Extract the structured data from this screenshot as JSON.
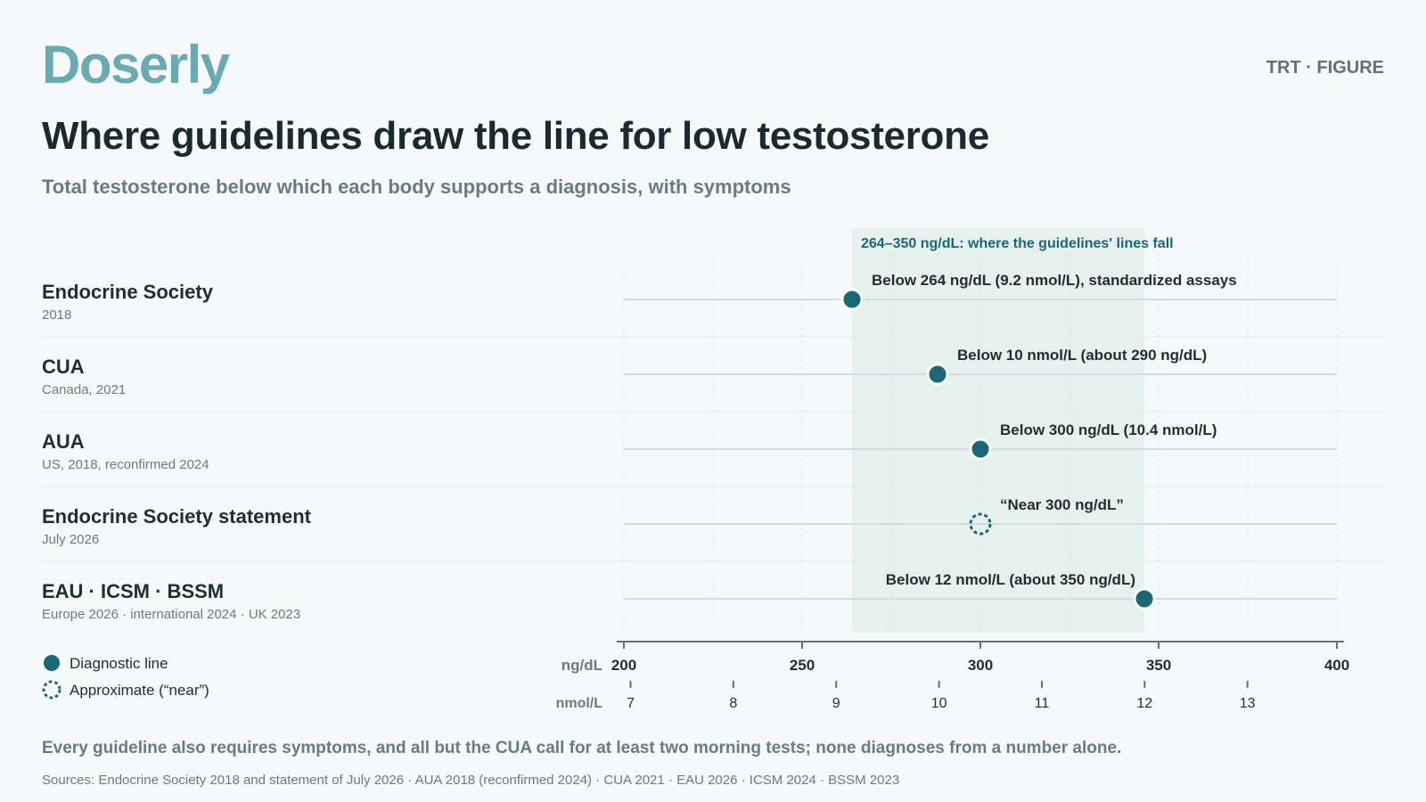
{
  "brand": "Doserly",
  "tag": "TRT · FIGURE",
  "title": "Where guidelines draw the line for low testosterone",
  "subtitle": "Total testosterone below which each body supports a diagnosis, with symptoms",
  "note": "Every guideline also requires symptoms, and all but the CUA call for at least two morning tests; none diagnoses from a number alone.",
  "sources": "Sources: Endocrine Society 2018 and statement of July 2026 · AUA 2018 (reconfirmed 2024) · CUA 2021 · EAU 2026 · ICSM 2024 · BSSM 2023",
  "colors": {
    "accent": "#1a6876",
    "band": "#e6f0ed",
    "brand": "#6aaab2",
    "text": "#1d2e35",
    "muted": "#6a7b81"
  },
  "chart_data": {
    "type": "dot",
    "x_units_primary": "ng/dL",
    "x_units_secondary": "nmol/L",
    "xlim": [
      200,
      400
    ],
    "x_ticks": [
      200,
      250,
      300,
      350,
      400
    ],
    "secondary_ticks": [
      7,
      8,
      9,
      10,
      11,
      12,
      13
    ],
    "band": {
      "from": 264,
      "to": 346,
      "label": "264–350 ng/dL: where the guidelines' lines fall"
    },
    "rows": [
      {
        "name": "Endocrine Society",
        "detail": "2018",
        "value": 264,
        "approximate": false,
        "label": "Below 264 ng/dL (9.2 nmol/L), standardized assays"
      },
      {
        "name": "CUA",
        "detail": "Canada, 2021",
        "value": 288,
        "approximate": false,
        "label": "Below 10 nmol/L (about 290 ng/dL)"
      },
      {
        "name": "AUA",
        "detail": "US, 2018, reconfirmed 2024",
        "value": 300,
        "approximate": false,
        "label": "Below 300 ng/dL (10.4 nmol/L)"
      },
      {
        "name": "Endocrine Society statement",
        "detail": "July 2026",
        "value": 300,
        "approximate": true,
        "label": "“Near 300 ng/dL”"
      },
      {
        "name": "EAU · ICSM · BSSM",
        "detail": "Europe 2026 · international 2024 · UK 2023",
        "value": 346,
        "approximate": false,
        "label": "Below 12 nmol/L (about 350 ng/dL)"
      }
    ],
    "legend": [
      {
        "marker": "filled",
        "label": "Diagnostic line"
      },
      {
        "marker": "dotted",
        "label": "Approximate (“near”)"
      }
    ]
  }
}
